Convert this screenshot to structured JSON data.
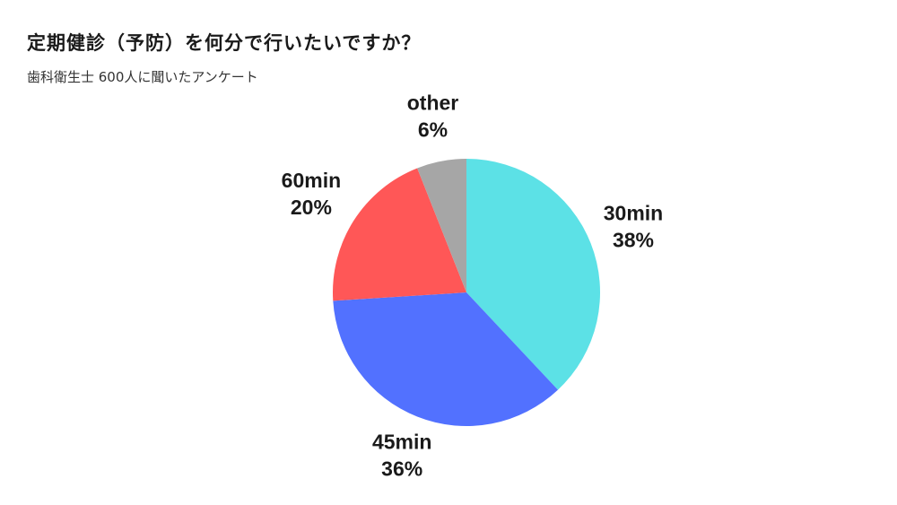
{
  "chart_data": {
    "type": "pie",
    "title": "定期健診（予防）を何分で行いたいですか？",
    "subtitle": "歯科衛生士 600人に聞いたアンケート",
    "slices": [
      {
        "name": "30min",
        "value": 38,
        "label": "38%",
        "color": "#5ce1e6"
      },
      {
        "name": "45min",
        "value": 36,
        "label": "36%",
        "color": "#5271ff"
      },
      {
        "name": "60min",
        "value": 20,
        "label": "20%",
        "color": "#ff5757"
      },
      {
        "name": "other",
        "value": 6,
        "label": "6%",
        "color": "#a6a6a6"
      }
    ],
    "start": "12 o'clock",
    "direction": "clockwise",
    "legend": "none"
  }
}
